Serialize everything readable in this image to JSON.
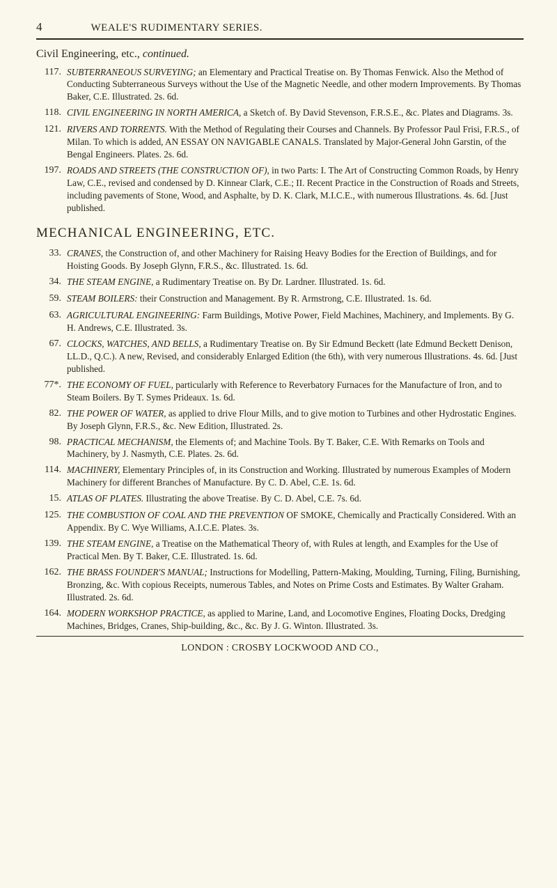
{
  "page_number": "4",
  "running_head": "WEALE'S RUDIMENTARY SERIES.",
  "section_continued": "Civil Engineering, etc., ",
  "section_continued_suffix": "continued.",
  "mechanical_head": "MECHANICAL ENGINEERING, ETC.",
  "footer": "LONDON : CROSBY LOCKWOOD AND CO.,",
  "entries_a": [
    {
      "num": "117.",
      "title": "SUBTERRANEOUS SURVEYING;",
      "rest": " an Elementary and Practical Treatise on. By Thomas Fenwick. Also the Method of Conducting Subterraneous Surveys without the Use of the Magnetic Needle, and other modern Improvements. By Thomas Baker, C.E. Illustrated. 2s. 6d."
    },
    {
      "num": "118.",
      "title": "CIVIL ENGINEERING IN NORTH AMERICA,",
      "rest": " a Sketch of. By David Stevenson, F.R.S.E., &c. Plates and Diagrams. 3s."
    },
    {
      "num": "121.",
      "title": "RIVERS AND TORRENTS.",
      "rest": " With the Method of Regulating their Courses and Channels. By Professor Paul Frisi, F.R.S., of Milan. To which is added, AN ESSAY ON NAVIGABLE CANALS. Translated by Major-General John Garstin, of the Bengal Engineers. Plates. 2s. 6d."
    },
    {
      "num": "197.",
      "title": "ROADS AND STREETS (THE CONSTRUCTION OF),",
      "rest": " in two Parts: I. The Art of Constructing Common Roads, by Henry Law, C.E., revised and condensed by D. Kinnear Clark, C.E.; II. Recent Practice in the Construction of Roads and Streets, including pavements of Stone, Wood, and Asphalte, by D. K. Clark, M.I.C.E., with numerous Illustrations. 4s. 6d.      [Just published."
    }
  ],
  "entries_b": [
    {
      "num": "33.",
      "title": "CRANES,",
      "rest": " the Construction of, and other Machinery for Raising Heavy Bodies for the Erection of Buildings, and for Hoisting Goods. By Joseph Glynn, F.R.S., &c. Illustrated. 1s. 6d."
    },
    {
      "num": "34.",
      "title": "THE STEAM ENGINE,",
      "rest": " a Rudimentary Treatise on. By Dr. Lardner. Illustrated. 1s. 6d."
    },
    {
      "num": "59.",
      "title": "STEAM BOILERS:",
      "rest": " their Construction and Management. By R. Armstrong, C.E. Illustrated. 1s. 6d."
    },
    {
      "num": "63.",
      "title": "AGRICULTURAL ENGINEERING:",
      "rest": " Farm Buildings, Motive Power, Field Machines, Machinery, and Implements. By G. H. Andrews, C.E. Illustrated. 3s."
    },
    {
      "num": "67.",
      "title": "CLOCKS, WATCHES, AND BELLS,",
      "rest": " a Rudimentary Treatise on. By Sir Edmund Beckett (late Edmund Beckett Denison, LL.D., Q.C.). A new, Revised, and considerably Enlarged Edition (the 6th), with very numerous Illustrations. 4s. 6d.      [Just published."
    },
    {
      "num": "77*.",
      "title": "THE ECONOMY OF FUEL,",
      "rest": " particularly with Reference to Reverbatory Furnaces for the Manufacture of Iron, and to Steam Boilers. By T. Symes Prideaux. 1s. 6d."
    },
    {
      "num": "82.",
      "title": "THE POWER OF WATER,",
      "rest": " as applied to drive Flour Mills, and to give motion to Turbines and other Hydrostatic Engines. By Joseph Glynn, F.R.S., &c. New Edition, Illustrated. 2s."
    },
    {
      "num": "98.",
      "title": "PRACTICAL MECHANISM,",
      "rest": " the Elements of; and Machine Tools. By T. Baker, C.E. With Remarks on Tools and Machinery, by J. Nasmyth, C.E. Plates. 2s. 6d."
    },
    {
      "num": "114.",
      "title": "MACHINERY,",
      "rest": " Elementary Principles of, in its Construction and Working. Illustrated by numerous Examples of Modern Machinery for different Branches of Manufacture. By C. D. Abel, C.E. 1s. 6d."
    },
    {
      "num": "15.",
      "title": "ATLAS OF PLATES.",
      "rest": " Illustrating the above Treatise. By C. D. Abel, C.E. 7s. 6d."
    },
    {
      "num": "125.",
      "title": "THE COMBUSTION OF COAL AND THE PREVENTION",
      "rest": " OF SMOKE, Chemically and Practically Considered. With an Appendix. By C. Wye Williams, A.I.C.E. Plates. 3s."
    },
    {
      "num": "139.",
      "title": "THE STEAM ENGINE,",
      "rest": " a Treatise on the Mathematical Theory of, with Rules at length, and Examples for the Use of Practical Men. By T. Baker, C.E. Illustrated. 1s. 6d."
    },
    {
      "num": "162.",
      "title": "THE BRASS FOUNDER'S MANUAL;",
      "rest": " Instructions for Modelling, Pattern-Making, Moulding, Turning, Filing, Burnishing, Bronzing, &c. With copious Receipts, numerous Tables, and Notes on Prime Costs and Estimates. By Walter Graham. Illustrated. 2s. 6d."
    },
    {
      "num": "164.",
      "title": "MODERN WORKSHOP PRACTICE,",
      "rest": " as applied to Marine, Land, and Locomotive Engines, Floating Docks, Dredging Machines, Bridges, Cranes, Ship-building, &c., &c. By J. G. Winton. Illustrated. 3s."
    }
  ]
}
